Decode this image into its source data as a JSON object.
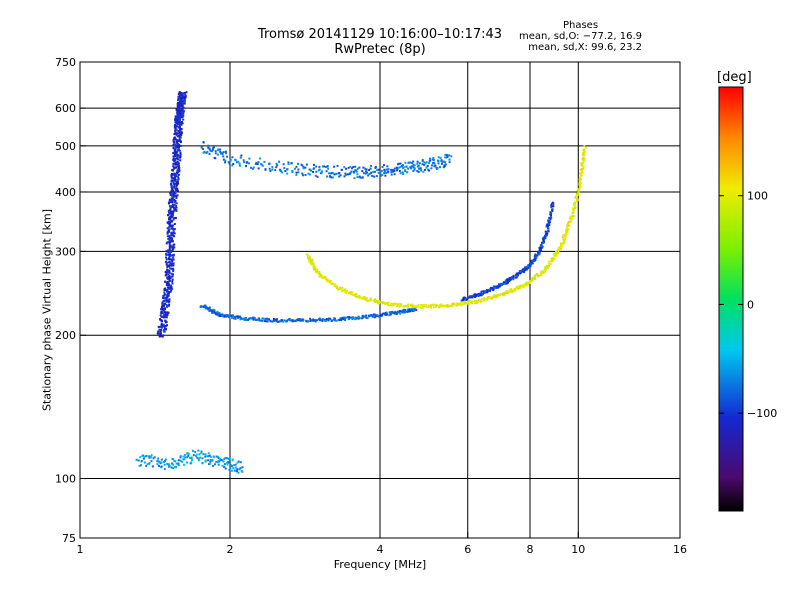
{
  "header": {
    "title_line1": "Tromsø 20141129 10:16:00–10:17:43",
    "title_line2": "RwPretec (8p)",
    "stats_heading": "Phases",
    "stats_o": "mean, sd,O: −77.2, 16.9",
    "stats_x": "mean, sd,X:  99.6, 23.2"
  },
  "colorbar": {
    "unit": "[deg]",
    "ticks": [
      {
        "label": "100",
        "value": 100
      },
      {
        "label": "0",
        "value": 0
      },
      {
        "label": "−100",
        "value": -100
      }
    ],
    "range": [
      -190,
      200
    ]
  },
  "chart_data": {
    "type": "scatter",
    "title": "Tromsø 20141129 10:16:00–10:17:43",
    "subtitle": "RwPretec (8p)",
    "xlabel": "Frequency [MHz]",
    "ylabel": "Stationary phase Virtual Height [km]",
    "xscale": "log",
    "yscale": "log",
    "xlim": [
      1,
      16
    ],
    "ylim": [
      75,
      750
    ],
    "grid": true,
    "x_ticks": [
      {
        "label": "1",
        "value": 1
      },
      {
        "label": "2",
        "value": 2
      },
      {
        "label": "4",
        "value": 4
      },
      {
        "label": "6",
        "value": 6
      },
      {
        "label": "8",
        "value": 8
      },
      {
        "label": "10",
        "value": 10
      },
      {
        "label": "16",
        "value": 16
      }
    ],
    "y_ticks": [
      {
        "label": "75",
        "value": 75
      },
      {
        "label": "100",
        "value": 100
      },
      {
        "label": "200",
        "value": 200
      },
      {
        "label": "300",
        "value": 300
      },
      {
        "label": "400",
        "value": 400
      },
      {
        "label": "500",
        "value": 500
      },
      {
        "label": "600",
        "value": 600
      },
      {
        "label": "750",
        "value": 750
      }
    ],
    "grid_x": [
      2,
      4,
      6,
      8,
      10
    ],
    "grid_y": [
      100,
      200,
      300,
      400,
      500,
      600
    ],
    "color_scale": "rainbow, phase in degrees (−190 black/purple → 200 red)",
    "traces": [
      {
        "description": "O-mode F trace low",
        "x": [
          1.75,
          1.9,
          2.1,
          2.4,
          2.8,
          3.3,
          3.8,
          4.3,
          4.7
        ],
        "y": [
          232,
          222,
          218,
          216,
          216,
          217,
          220,
          224,
          228
        ],
        "phase": -80
      },
      {
        "description": "O-mode F trace high",
        "x": [
          5.8,
          6.3,
          6.9,
          7.4,
          7.9,
          8.3,
          8.6,
          8.85
        ],
        "y": [
          238,
          245,
          255,
          266,
          280,
          300,
          330,
          380
        ],
        "phase": -95
      },
      {
        "description": "X-mode F trace",
        "x": [
          2.85,
          3.0,
          3.3,
          3.7,
          4.2,
          4.8,
          5.5,
          6.3,
          7.1,
          7.9,
          8.6,
          9.2,
          9.7,
          10.05,
          10.25
        ],
        "y": [
          295,
          270,
          252,
          240,
          233,
          231,
          232,
          237,
          246,
          258,
          278,
          310,
          360,
          420,
          500
        ],
        "phase": 100
      },
      {
        "description": "Spread F vertical",
        "x": [
          1.45,
          1.5,
          1.52,
          1.55,
          1.57,
          1.6
        ],
        "y": [
          200,
          260,
          350,
          450,
          560,
          650
        ],
        "phase": -110
      },
      {
        "description": "Multiple hop 2F",
        "x": [
          1.75,
          2.0,
          2.5,
          3.0,
          3.5,
          4.0,
          4.5,
          5.0,
          5.5
        ],
        "y": [
          500,
          470,
          452,
          445,
          442,
          445,
          450,
          458,
          470
        ],
        "phase": -75
      },
      {
        "description": "E region spread",
        "x": [
          1.3,
          1.5,
          1.7,
          1.9,
          2.1
        ],
        "y": [
          110,
          108,
          112,
          109,
          106
        ],
        "phase": -60
      }
    ]
  }
}
